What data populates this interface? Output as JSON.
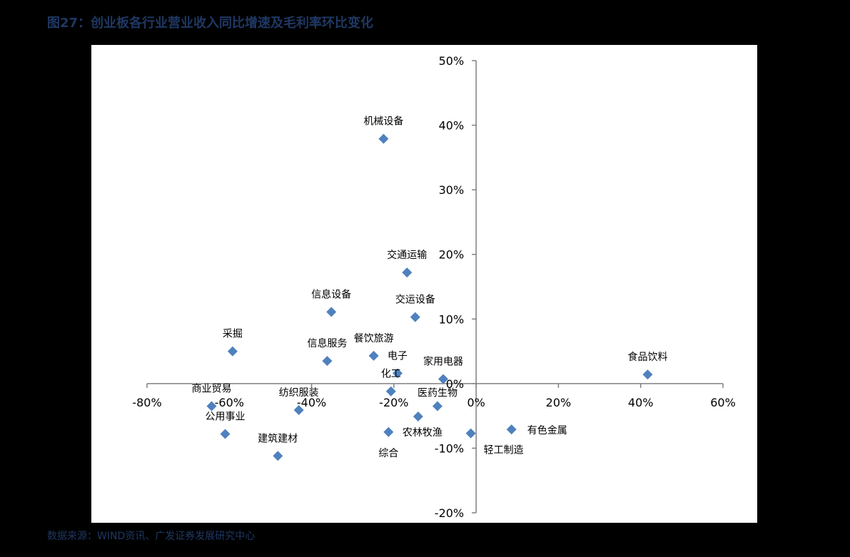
{
  "title": "图27：创业板各行业营业收入同比增速及毛利率环比变化",
  "source": "数据来源：WIND资讯、广发证券发展研究中心",
  "chart_data": {
    "type": "scatter",
    "title": "",
    "xlabel": "",
    "ylabel": "",
    "xlim": [
      -80,
      60
    ],
    "ylim": [
      -20,
      50
    ],
    "x_ticks": [
      -80,
      -60,
      -40,
      -20,
      0,
      20,
      40,
      60
    ],
    "y_ticks": [
      -20,
      -10,
      0,
      10,
      20,
      30,
      40,
      50
    ],
    "x_tick_labels": [
      "-80%",
      "-60%",
      "-40%",
      "-20%",
      "0%",
      "20%",
      "40%",
      "60%"
    ],
    "y_tick_labels": [
      "-20%",
      "-10%",
      "0%",
      "10%",
      "20%",
      "30%",
      "40%",
      "50%"
    ],
    "grid": false,
    "legend": "none",
    "marker_color": "#4f81bd",
    "points": [
      {
        "label": "机械设备",
        "x": -22.5,
        "y": 37.9
      },
      {
        "label": "交通运输",
        "x": -16.8,
        "y": 17.2
      },
      {
        "label": "信息设备",
        "x": -35.2,
        "y": 11.1
      },
      {
        "label": "交运设备",
        "x": -14.8,
        "y": 10.3
      },
      {
        "label": "采掘",
        "x": -59.2,
        "y": 5.0
      },
      {
        "label": "信息服务",
        "x": -36.2,
        "y": 3.5
      },
      {
        "label": "餐饮旅游",
        "x": -24.9,
        "y": 4.3
      },
      {
        "label": "电子",
        "x": -19.1,
        "y": 1.6
      },
      {
        "label": "家用电器",
        "x": -8.0,
        "y": 0.7
      },
      {
        "label": "化工",
        "x": -20.7,
        "y": -1.2
      },
      {
        "label": "食品饮料",
        "x": 41.7,
        "y": 1.4
      },
      {
        "label": "商业贸易",
        "x": -64.3,
        "y": -3.5
      },
      {
        "label": "纺织服装",
        "x": -43.1,
        "y": -4.1
      },
      {
        "label": "医药生物",
        "x": -9.4,
        "y": -3.5
      },
      {
        "label": "公用事业",
        "x": -61.0,
        "y": -7.8
      },
      {
        "label": "农林牧渔",
        "x": -14.1,
        "y": -5.1
      },
      {
        "label": "综合",
        "x": -21.3,
        "y": -7.5
      },
      {
        "label": "轻工制造",
        "x": -1.3,
        "y": -7.7
      },
      {
        "label": "有色金属",
        "x": 8.6,
        "y": -7.1
      },
      {
        "label": "建筑建材",
        "x": -48.2,
        "y": -11.2
      }
    ]
  }
}
